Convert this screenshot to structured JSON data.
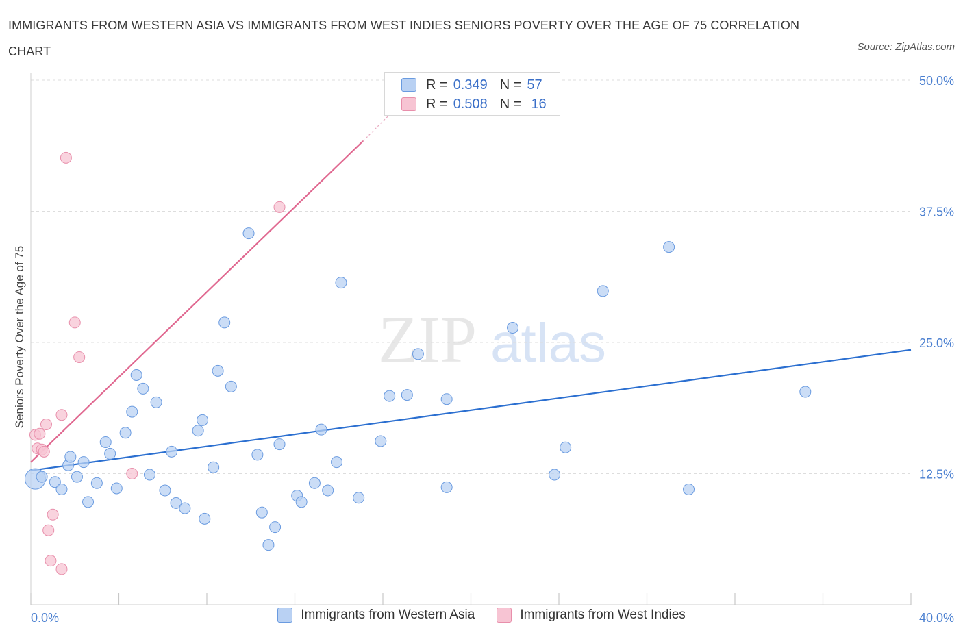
{
  "title": "IMMIGRANTS FROM WESTERN ASIA VS IMMIGRANTS FROM WEST INDIES SENIORS POVERTY OVER THE AGE OF 75 CORRELATION CHART",
  "source": "Source: ZipAtlas.com",
  "watermark": {
    "zip": "ZIP",
    "atlas": "atlas"
  },
  "legend": {
    "rows": [
      {
        "r_label": "R =",
        "r_value": "0.349",
        "n_label": "N =",
        "n_value": "57"
      },
      {
        "r_label": "R =",
        "r_value": "0.508",
        "n_label": "N =",
        "n_value": "16"
      }
    ]
  },
  "colors": {
    "blue_fill": "#b9d1f3",
    "blue_stroke": "#6a9be0",
    "blue_line": "#2b6fd0",
    "pink_fill": "#f7c4d3",
    "pink_stroke": "#e88fab",
    "pink_line": "#e06890",
    "tick": "#4a7fd0",
    "grid": "#dddddd"
  },
  "chart_data": {
    "type": "scatter",
    "title": "IMMIGRANTS FROM WESTERN ASIA VS IMMIGRANTS FROM WEST INDIES SENIORS POVERTY OVER THE AGE OF 75 CORRELATION CHART",
    "xlabel": "",
    "ylabel": "Seniors Poverty Over the Age of 75",
    "xlim": [
      0,
      40
    ],
    "ylim": [
      0,
      50
    ],
    "x_tick_labels": [
      "0.0%",
      "40.0%"
    ],
    "y_tick_values": [
      12.5,
      25.0,
      37.5,
      50.0
    ],
    "y_tick_labels": [
      "12.5%",
      "25.0%",
      "37.5%",
      "50.0%"
    ],
    "grid": true,
    "legend_placement": "bottom",
    "series": [
      {
        "name": "Immigrants from Western Asia",
        "color": "#b9d1f3",
        "trend": {
          "x": [
            0,
            40
          ],
          "y": [
            12.8,
            24.3
          ]
        },
        "points": [
          {
            "x": 0.2,
            "y": 12.0,
            "big": true
          },
          {
            "x": 0.5,
            "y": 12.2
          },
          {
            "x": 1.7,
            "y": 13.3
          },
          {
            "x": 1.1,
            "y": 11.7
          },
          {
            "x": 1.4,
            "y": 11.0
          },
          {
            "x": 1.8,
            "y": 14.1
          },
          {
            "x": 2.1,
            "y": 12.2
          },
          {
            "x": 2.4,
            "y": 13.6
          },
          {
            "x": 2.6,
            "y": 9.8
          },
          {
            "x": 3.0,
            "y": 11.6
          },
          {
            "x": 3.4,
            "y": 15.5
          },
          {
            "x": 3.6,
            "y": 14.4
          },
          {
            "x": 3.9,
            "y": 11.1
          },
          {
            "x": 4.3,
            "y": 16.4
          },
          {
            "x": 4.6,
            "y": 18.4
          },
          {
            "x": 4.8,
            "y": 21.9
          },
          {
            "x": 5.1,
            "y": 20.6
          },
          {
            "x": 5.4,
            "y": 12.4
          },
          {
            "x": 5.7,
            "y": 19.3
          },
          {
            "x": 6.1,
            "y": 10.9
          },
          {
            "x": 6.4,
            "y": 14.6
          },
          {
            "x": 6.6,
            "y": 9.7
          },
          {
            "x": 7.0,
            "y": 9.2
          },
          {
            "x": 7.6,
            "y": 16.6
          },
          {
            "x": 7.8,
            "y": 17.6
          },
          {
            "x": 7.9,
            "y": 8.2
          },
          {
            "x": 8.3,
            "y": 13.1
          },
          {
            "x": 8.5,
            "y": 22.3
          },
          {
            "x": 8.8,
            "y": 26.9
          },
          {
            "x": 9.1,
            "y": 20.8
          },
          {
            "x": 9.9,
            "y": 35.4
          },
          {
            "x": 10.3,
            "y": 14.3
          },
          {
            "x": 10.5,
            "y": 8.8
          },
          {
            "x": 10.8,
            "y": 5.7
          },
          {
            "x": 11.1,
            "y": 7.4
          },
          {
            "x": 11.3,
            "y": 15.3
          },
          {
            "x": 12.1,
            "y": 10.4
          },
          {
            "x": 12.3,
            "y": 9.8
          },
          {
            "x": 12.9,
            "y": 11.6
          },
          {
            "x": 13.2,
            "y": 16.7
          },
          {
            "x": 13.5,
            "y": 10.9
          },
          {
            "x": 13.9,
            "y": 13.6
          },
          {
            "x": 14.1,
            "y": 30.7
          },
          {
            "x": 14.9,
            "y": 10.2
          },
          {
            "x": 15.9,
            "y": 15.6
          },
          {
            "x": 16.3,
            "y": 19.9
          },
          {
            "x": 17.1,
            "y": 20.0
          },
          {
            "x": 17.6,
            "y": 23.9
          },
          {
            "x": 18.9,
            "y": 19.6
          },
          {
            "x": 18.9,
            "y": 11.2
          },
          {
            "x": 21.9,
            "y": 26.4
          },
          {
            "x": 23.8,
            "y": 12.4
          },
          {
            "x": 24.3,
            "y": 15.0
          },
          {
            "x": 26.0,
            "y": 29.9
          },
          {
            "x": 29.0,
            "y": 34.1
          },
          {
            "x": 29.9,
            "y": 11.0
          },
          {
            "x": 35.2,
            "y": 20.3
          }
        ]
      },
      {
        "name": "Immigrants from West Indies",
        "color": "#f7c4d3",
        "trend": {
          "x": [
            0,
            15.1
          ],
          "y": [
            13.6,
            44.2
          ]
        },
        "trend_dashed": {
          "x": [
            15.1,
            16.3
          ],
          "y": [
            44.2,
            46.7
          ]
        },
        "points": [
          {
            "x": 0.2,
            "y": 16.2
          },
          {
            "x": 0.3,
            "y": 14.9
          },
          {
            "x": 0.4,
            "y": 16.3
          },
          {
            "x": 0.5,
            "y": 14.8
          },
          {
            "x": 0.6,
            "y": 14.6
          },
          {
            "x": 0.7,
            "y": 17.2
          },
          {
            "x": 0.8,
            "y": 7.1
          },
          {
            "x": 0.9,
            "y": 4.2
          },
          {
            "x": 1.0,
            "y": 8.6
          },
          {
            "x": 1.4,
            "y": 18.1
          },
          {
            "x": 1.4,
            "y": 3.4
          },
          {
            "x": 1.6,
            "y": 42.6
          },
          {
            "x": 2.0,
            "y": 26.9
          },
          {
            "x": 2.2,
            "y": 23.6
          },
          {
            "x": 4.6,
            "y": 12.5
          },
          {
            "x": 11.3,
            "y": 37.9
          }
        ]
      }
    ]
  }
}
